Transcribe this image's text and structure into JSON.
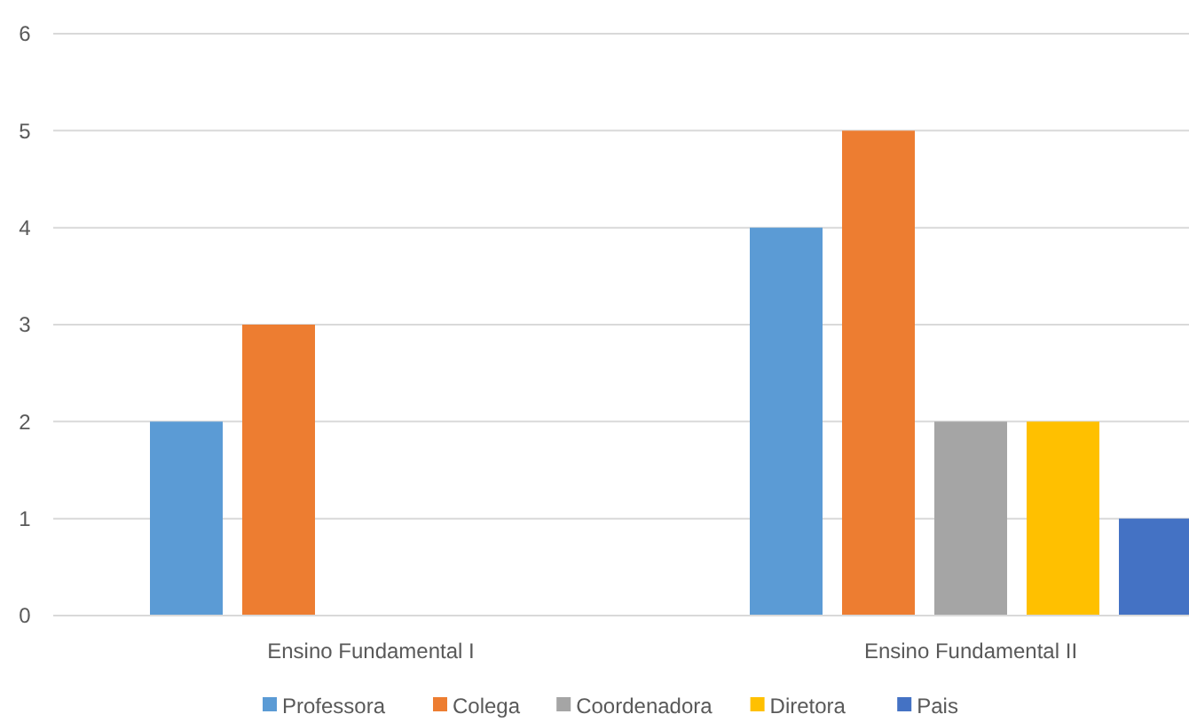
{
  "chart_data": {
    "type": "bar",
    "categories": [
      "Ensino Fundamental I",
      "Ensino Fundamental II"
    ],
    "series": [
      {
        "name": "Professora",
        "color": "#5b9bd5",
        "values": [
          2,
          4
        ]
      },
      {
        "name": "Colega",
        "color": "#ed7d31",
        "values": [
          3,
          5
        ]
      },
      {
        "name": "Coordenadora",
        "color": "#a5a5a5",
        "values": [
          0,
          2
        ]
      },
      {
        "name": "Diretora",
        "color": "#ffc000",
        "values": [
          0,
          2
        ]
      },
      {
        "name": "Pais",
        "color": "#4472c4",
        "values": [
          0,
          1
        ]
      }
    ],
    "ylim": [
      0,
      6
    ],
    "yticks": [
      0,
      1,
      2,
      3,
      4,
      5,
      6
    ],
    "grid": "y",
    "legend": "bottom"
  }
}
